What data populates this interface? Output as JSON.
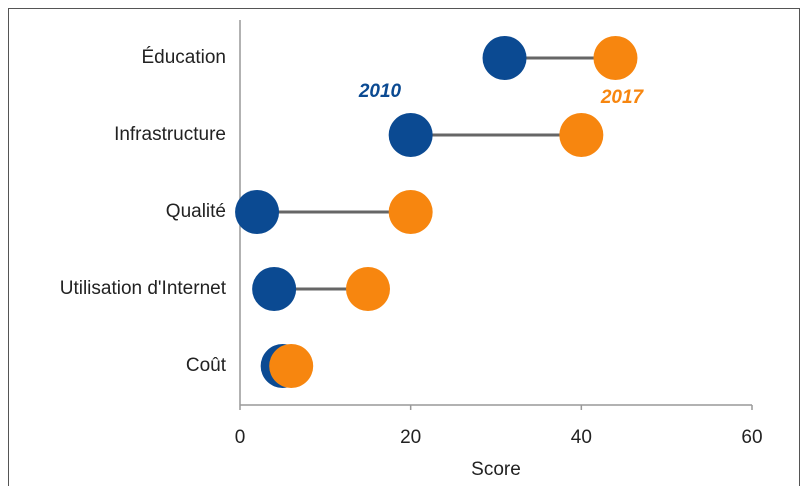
{
  "chart_data": {
    "type": "dumbbell",
    "categories": [
      "Éducation",
      "Infrastructure",
      "Qualité",
      "Utilisation d'Internet",
      "Coût"
    ],
    "series": [
      {
        "name": "2010",
        "color": "#0b4a92",
        "values": [
          31,
          20,
          2,
          4,
          5
        ]
      },
      {
        "name": "2017",
        "color": "#f7860f",
        "values": [
          44,
          40,
          20,
          15,
          6
        ]
      }
    ],
    "xlabel": "Score",
    "xlim": [
      0,
      60
    ],
    "xticks": [
      0,
      20,
      40,
      60
    ]
  }
}
